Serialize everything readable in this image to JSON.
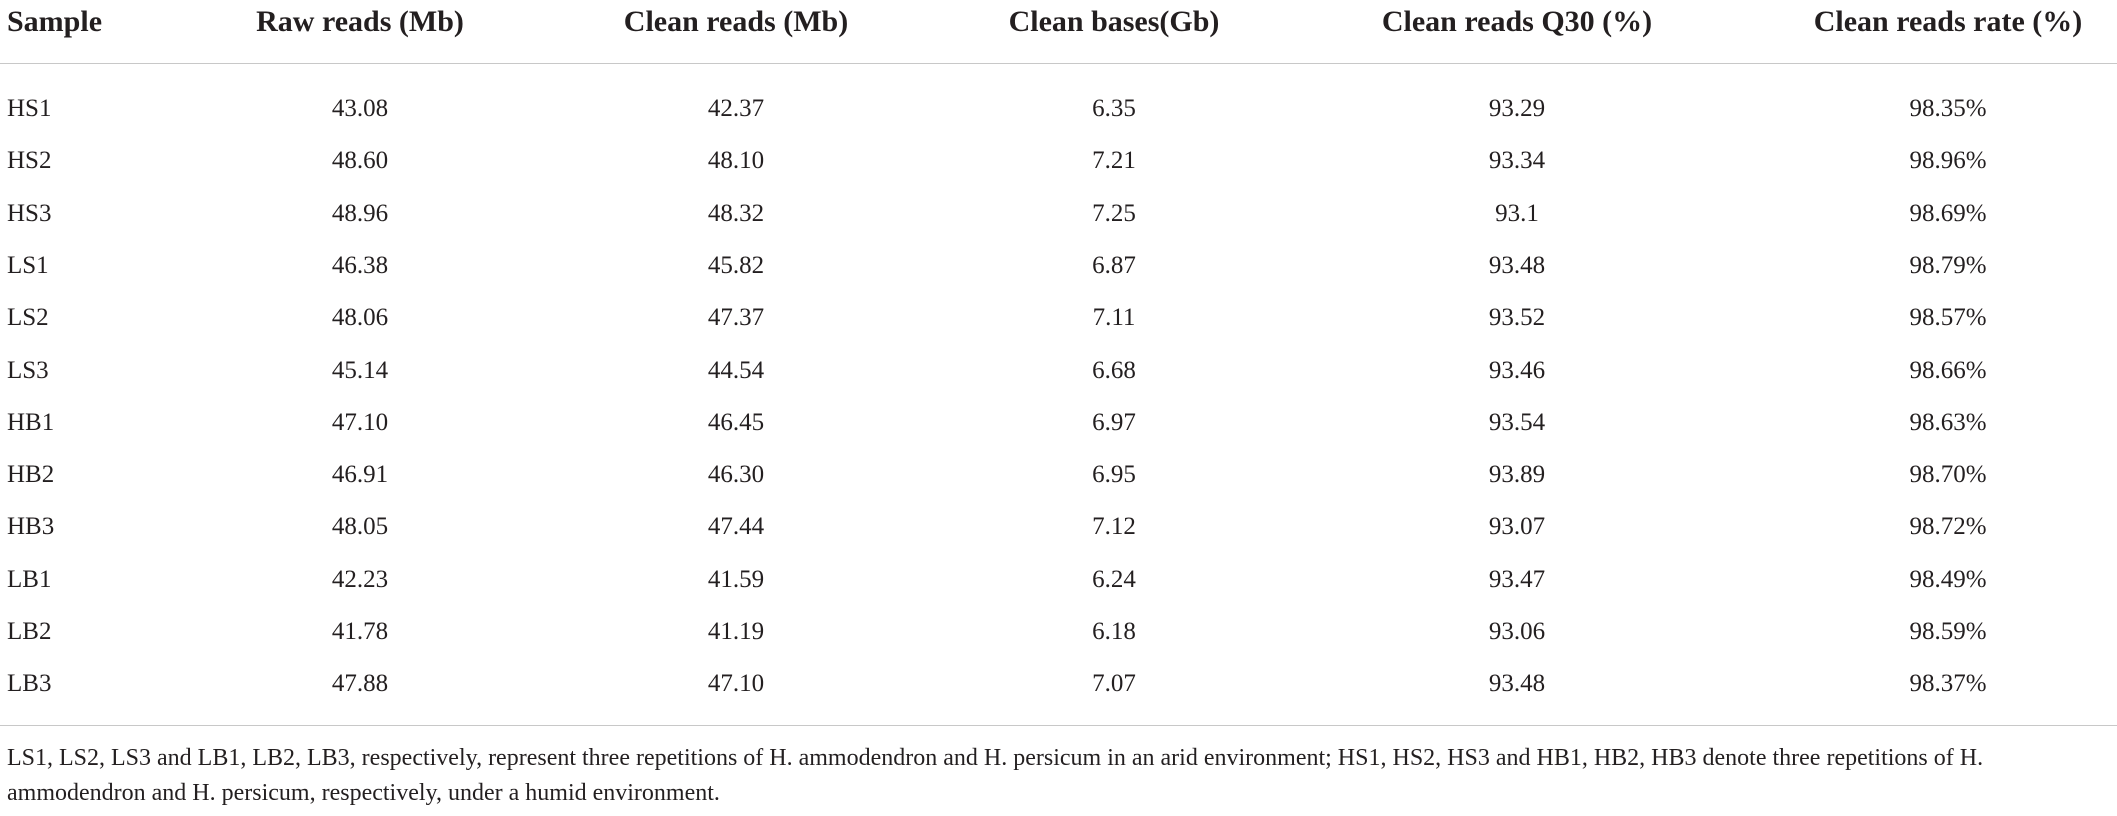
{
  "table": {
    "header": [
      "Sample",
      "Raw reads (Mb)",
      "Clean reads (Mb)",
      "Clean bases(Gb)",
      "Clean reads Q30 (%)",
      "Clean reads rate (%)"
    ],
    "rows": [
      [
        "HS1",
        "43.08",
        "42.37",
        "6.35",
        "93.29",
        "98.35%"
      ],
      [
        "HS2",
        "48.60",
        "48.10",
        "7.21",
        "93.34",
        "98.96%"
      ],
      [
        "HS3",
        "48.96",
        "48.32",
        "7.25",
        "93.1",
        "98.69%"
      ],
      [
        "LS1",
        "46.38",
        "45.82",
        "6.87",
        "93.48",
        "98.79%"
      ],
      [
        "LS2",
        "48.06",
        "47.37",
        "7.11",
        "93.52",
        "98.57%"
      ],
      [
        "LS3",
        "45.14",
        "44.54",
        "6.68",
        "93.46",
        "98.66%"
      ],
      [
        "HB1",
        "47.10",
        "46.45",
        "6.97",
        "93.54",
        "98.63%"
      ],
      [
        "HB2",
        "46.91",
        "46.30",
        "6.95",
        "93.89",
        "98.70%"
      ],
      [
        "HB3",
        "48.05",
        "47.44",
        "7.12",
        "93.07",
        "98.72%"
      ],
      [
        "LB1",
        "42.23",
        "41.59",
        "6.24",
        "93.47",
        "98.49%"
      ],
      [
        "LB2",
        "41.78",
        "41.19",
        "6.18",
        "93.06",
        "98.59%"
      ],
      [
        "LB3",
        "47.88",
        "47.10",
        "7.07",
        "93.48",
        "98.37%"
      ]
    ],
    "footnote": "LS1, LS2, LS3 and LB1, LB2, LB3, respectively, represent three repetitions of H. ammodendron and H. persicum in an arid environment; HS1, HS2, HS3 and HB1, HB2, HB3 denote three repetitions of H. ammodendron and H. persicum, respectively, under a humid environment."
  }
}
